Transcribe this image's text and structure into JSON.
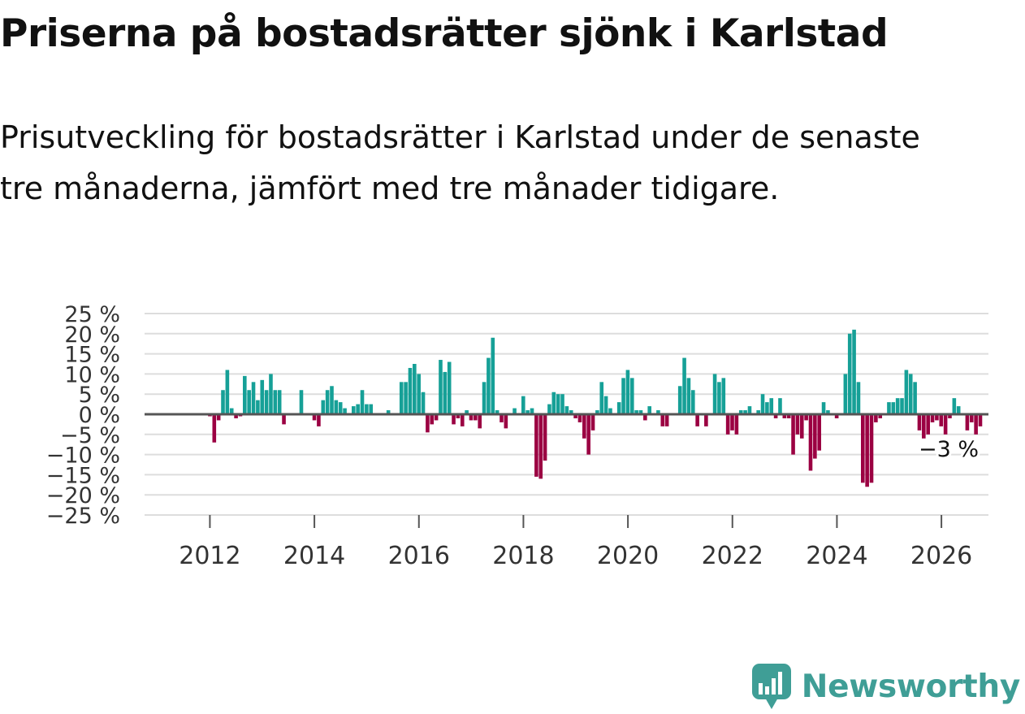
{
  "chart_data": {
    "type": "bar",
    "title": "Priserna på bostadsrätter sjönk i Karlstad",
    "subtitle": "Prisutveckling för bostadsrätter i Karlstad under de senaste tre månaderna, jämfört med tre månader tidigare.",
    "xlabel": "",
    "ylabel": "",
    "x_start": 2011.917,
    "x_step": 0.0833,
    "x_ticks": [
      "2012",
      "2014",
      "2016",
      "2018",
      "2020",
      "2022",
      "2024",
      "2026"
    ],
    "x_tick_values": [
      2012,
      2014,
      2016,
      2018,
      2020,
      2022,
      2024,
      2026
    ],
    "xlim": [
      2010.75,
      2026.9
    ],
    "ylim": [
      -25,
      25
    ],
    "y_ticks": [
      "25 %",
      "20 %",
      "15 %",
      "10 %",
      "5 %",
      "0 %",
      "−5 %",
      "−10 %",
      "−15 %",
      "−20 %",
      "−25 %"
    ],
    "y_tick_values": [
      25,
      20,
      15,
      10,
      5,
      0,
      -5,
      -10,
      -15,
      -20,
      -25
    ],
    "values": [
      0,
      -0.5,
      -7,
      -1.5,
      6,
      11,
      1.5,
      -1,
      -0.5,
      9.5,
      6,
      8,
      3.5,
      8.5,
      6,
      10,
      6,
      6,
      -2.5,
      0,
      0,
      0,
      6,
      0,
      0,
      -1.5,
      -3,
      3.5,
      6,
      7,
      3.5,
      3,
      1.5,
      0,
      2,
      2.5,
      6,
      2.5,
      2.5,
      0,
      0,
      0,
      1,
      0,
      0,
      8,
      8,
      11.5,
      12.5,
      10,
      5.5,
      -4.5,
      -2.5,
      -1.5,
      13.5,
      10.5,
      13,
      -2.5,
      -1,
      -3,
      1,
      -1.5,
      -1.5,
      -3.5,
      8,
      14,
      19,
      1,
      -2,
      -3.5,
      0,
      1.5,
      0,
      4.5,
      1,
      1.5,
      -15.5,
      -16,
      -11.5,
      2.5,
      5.5,
      5,
      5,
      2,
      1,
      -1,
      -2,
      -6,
      -10,
      -4,
      1,
      8,
      4.5,
      1.5,
      0,
      3,
      9,
      11,
      9,
      1,
      1,
      -1.5,
      2,
      0,
      1,
      -3,
      -3,
      0,
      0,
      7,
      14,
      9,
      6,
      -3,
      0,
      -3,
      0,
      10,
      8,
      9,
      -5,
      -4,
      -5,
      1,
      1,
      2,
      0,
      1,
      5,
      3,
      4,
      -1,
      4,
      -1,
      -1,
      -10,
      -5,
      -6,
      -1.5,
      -14,
      -11,
      -9,
      3,
      1,
      0,
      -1,
      0,
      10,
      20,
      21,
      8,
      -17,
      -18,
      -17,
      -2,
      -1,
      0,
      3,
      3,
      4,
      4,
      11,
      10,
      8,
      -4,
      -6,
      -5,
      -2,
      -1.5,
      -3,
      -5,
      -1,
      4,
      2,
      0,
      -4,
      -2,
      -5,
      -3
    ],
    "end_label": "−3 %",
    "colors": {
      "positive": "#16a097",
      "negative": "#9b0042",
      "grid": "#dddddd",
      "zero_line": "#555555",
      "axis_text": "#333333"
    }
  },
  "brand": {
    "name": "Newsworthy",
    "icon": "newsworthy-logo-icon",
    "color": "#3f9e96"
  }
}
